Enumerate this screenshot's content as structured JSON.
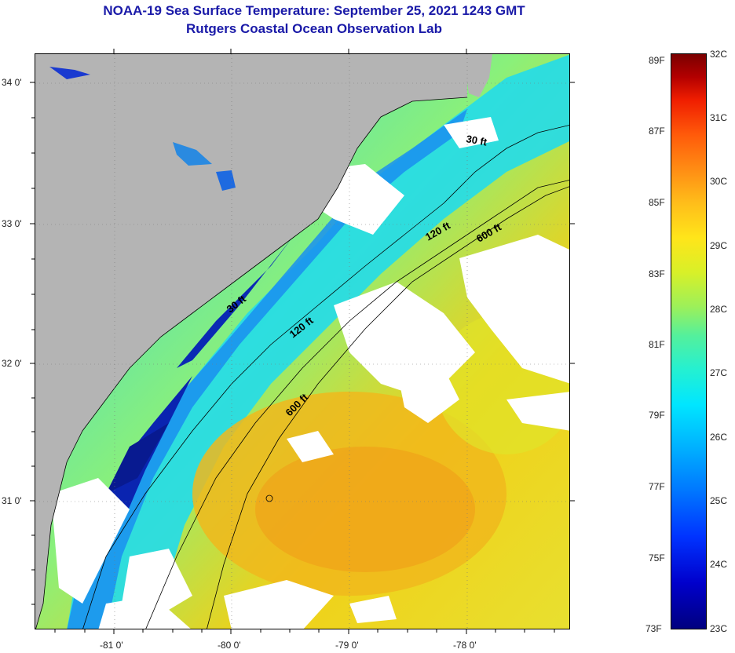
{
  "header": {
    "title": "NOAA-19 Sea Surface Temperature:  September 25, 2021 1243 GMT",
    "subtitle": "Rutgers Coastal Ocean Observation Lab"
  },
  "map": {
    "lat_ticks": [
      "34 0'",
      "33 0'",
      "32 0'",
      "31 0'"
    ],
    "lon_ticks": [
      "-81 0'",
      "-80 0'",
      "-79 0'",
      "-78 0'"
    ],
    "isobath_labels": [
      "30 ft",
      "120 ft",
      "600 ft",
      "30 ft",
      "120 ft",
      "600 ft"
    ],
    "colors": {
      "land": "#b4b4b4",
      "cloud": "#ffffff",
      "warm_water": "#f0c814",
      "cool_water": "#20d8e8",
      "cold_water": "#0a2ab4",
      "contour": "#000000"
    }
  },
  "colorbar": {
    "fahrenheit": [
      "89F",
      "87F",
      "85F",
      "83F",
      "81F",
      "79F",
      "77F",
      "75F",
      "73F"
    ],
    "celsius": [
      "32C",
      "31C",
      "30C",
      "29C",
      "28C",
      "27C",
      "26C",
      "25C",
      "24C",
      "23C"
    ]
  }
}
